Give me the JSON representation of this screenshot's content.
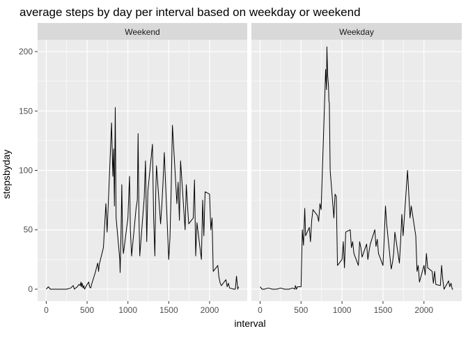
{
  "chart_data": {
    "type": "line",
    "title": "average steps by day per interval based on weekday or weekend",
    "xlabel": "interval",
    "ylabel": "stepsbyday",
    "xlim": [
      0,
      2355
    ],
    "ylim": [
      0,
      210
    ],
    "x_ticks": [
      0,
      500,
      1000,
      1500,
      2000
    ],
    "y_ticks": [
      0,
      50,
      100,
      150,
      200
    ],
    "grid": true,
    "legend": "none",
    "colors": {
      "panel_bg": "#EBEBEB",
      "grid": "#FFFFFF",
      "strip_bg": "#D9D9D9",
      "line": "#000000",
      "axis_text": "#4D4D4D",
      "strip_text": "#1A1A1A"
    },
    "panels": [
      {
        "strip": "Weekend",
        "x": [
          0,
          25,
          50,
          100,
          150,
          200,
          250,
          300,
          330,
          345,
          360,
          380,
          400,
          415,
          425,
          430,
          440,
          450,
          460,
          470,
          500,
          520,
          530,
          545,
          555,
          600,
          615,
          630,
          640,
          650,
          700,
          730,
          745,
          800,
          815,
          825,
          835,
          845,
          855,
          900,
          905,
          915,
          925,
          935,
          945,
          1000,
          1010,
          1020,
          1030,
          1045,
          1100,
          1115,
          1125,
          1135,
          1145,
          1200,
          1215,
          1230,
          1245,
          1300,
          1315,
          1330,
          1340,
          1350,
          1400,
          1415,
          1430,
          1445,
          1500,
          1515,
          1530,
          1545,
          1600,
          1615,
          1630,
          1645,
          1700,
          1715,
          1730,
          1745,
          1800,
          1815,
          1830,
          1845,
          1900,
          1915,
          1930,
          1945,
          2000,
          2015,
          2030,
          2045,
          2100,
          2115,
          2130,
          2145,
          2200,
          2215,
          2230,
          2245,
          2300,
          2315,
          2330,
          2345,
          2355
        ],
        "y": [
          0,
          2,
          0,
          0,
          0,
          0,
          0,
          1,
          3,
          0,
          1,
          2,
          4,
          3,
          6,
          2,
          5,
          1,
          3,
          0,
          4,
          6,
          2,
          1,
          4,
          14,
          18,
          22,
          15,
          21,
          35,
          72,
          48,
          140,
          95,
          118,
          70,
          153,
          60,
          25,
          14,
          45,
          88,
          40,
          30,
          60,
          80,
          95,
          50,
          28,
          68,
          75,
          131,
          62,
          28,
          77,
          108,
          40,
          83,
          122,
          60,
          28,
          80,
          104,
          55,
          70,
          90,
          115,
          25,
          44,
          84,
          138,
          72,
          90,
          58,
          108,
          50,
          88,
          70,
          55,
          60,
          92,
          28,
          56,
          25,
          75,
          45,
          82,
          80,
          50,
          60,
          15,
          20,
          10,
          5,
          3,
          8,
          2,
          5,
          1,
          0,
          0,
          11,
          0,
          2
        ]
      },
      {
        "strip": "Weekday",
        "x": [
          0,
          25,
          50,
          100,
          150,
          200,
          250,
          300,
          350,
          400,
          425,
          430,
          445,
          455,
          500,
          515,
          530,
          545,
          555,
          600,
          615,
          630,
          645,
          700,
          715,
          730,
          745,
          800,
          810,
          815,
          825,
          835,
          840,
          845,
          855,
          900,
          915,
          930,
          945,
          1000,
          1015,
          1030,
          1045,
          1100,
          1115,
          1130,
          1145,
          1200,
          1215,
          1230,
          1245,
          1300,
          1315,
          1330,
          1345,
          1400,
          1415,
          1430,
          1445,
          1500,
          1515,
          1530,
          1545,
          1600,
          1615,
          1630,
          1645,
          1700,
          1715,
          1730,
          1745,
          1800,
          1815,
          1830,
          1845,
          1900,
          1915,
          1930,
          1945,
          2000,
          2015,
          2030,
          2045,
          2100,
          2115,
          2130,
          2145,
          2200,
          2215,
          2230,
          2245,
          2300,
          2315,
          2330,
          2345,
          2355
        ],
        "y": [
          2,
          0,
          0,
          1,
          0,
          0,
          1,
          0,
          0,
          1,
          0,
          3,
          0,
          2,
          2,
          50,
          37,
          68,
          45,
          52,
          40,
          58,
          67,
          62,
          57,
          72,
          67,
          185,
          168,
          204,
          180,
          171,
          158,
          157,
          100,
          60,
          80,
          78,
          20,
          25,
          40,
          18,
          48,
          50,
          35,
          40,
          30,
          20,
          40,
          35,
          27,
          38,
          25,
          32,
          38,
          50,
          36,
          42,
          30,
          20,
          43,
          70,
          55,
          17,
          22,
          30,
          48,
          22,
          40,
          63,
          45,
          100,
          80,
          60,
          70,
          45,
          15,
          20,
          6,
          20,
          12,
          30,
          18,
          15,
          5,
          15,
          4,
          3,
          20,
          8,
          0,
          7,
          2,
          5,
          0,
          0
        ]
      }
    ]
  }
}
